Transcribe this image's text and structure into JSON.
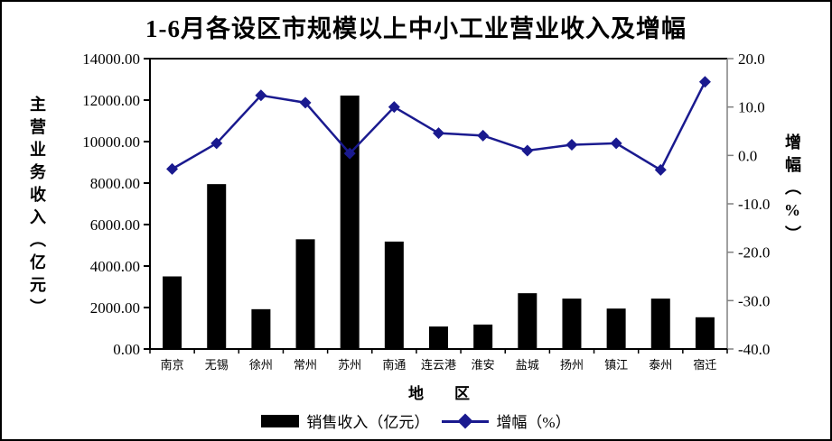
{
  "title": "1-6月各设区市规模以上中小工业营业收入及增幅",
  "legend": {
    "items": [
      {
        "label": "销售收入（亿元）",
        "swatch": "bar-swatch",
        "color": "#000000"
      },
      {
        "label": "增幅（%）",
        "swatch": "line-diamond-swatch",
        "color": "#1a1a8f"
      }
    ]
  },
  "chart_data": {
    "type": "bar",
    "title": "1-6月各设区市规模以上中小工业营业收入及增幅",
    "categories": [
      "南京",
      "无锡",
      "徐州",
      "常州",
      "苏州",
      "南通",
      "连云港",
      "淮安",
      "盐城",
      "扬州",
      "镇江",
      "泰州",
      "宿迁"
    ],
    "series": [
      {
        "name": "销售收入（亿元）",
        "type": "bar",
        "axis": "left",
        "color": "#000000",
        "values": [
          3500,
          7950,
          1920,
          5290,
          12220,
          5180,
          1085,
          1180,
          2690,
          2430,
          1950,
          2430,
          1530
        ]
      },
      {
        "name": "增幅（%）",
        "type": "line",
        "axis": "right",
        "color": "#1a1a8f",
        "marker": "diamond",
        "values": [
          -2.8,
          2.5,
          12.4,
          10.9,
          0.4,
          10.0,
          4.6,
          4.1,
          1.0,
          2.2,
          2.5,
          -3.0,
          15.2
        ]
      }
    ],
    "xlabel": "地　　区",
    "left_axis": {
      "title": "主营业务收入（亿元）",
      "min": 0,
      "max": 14000,
      "step": 2000,
      "tick_labels": [
        "0.00",
        "2000.00",
        "4000.00",
        "6000.00",
        "8000.00",
        "10000.00",
        "12000.00",
        "14000.00"
      ]
    },
    "right_axis": {
      "title": "增幅（%）",
      "min": -40,
      "max": 20,
      "step": 10,
      "tick_labels": [
        "-40.0",
        "-30.0",
        "-20.0",
        "-10.0",
        "0.0",
        "10.0",
        "20.0"
      ]
    },
    "grid": false,
    "legend_position": "bottom"
  }
}
